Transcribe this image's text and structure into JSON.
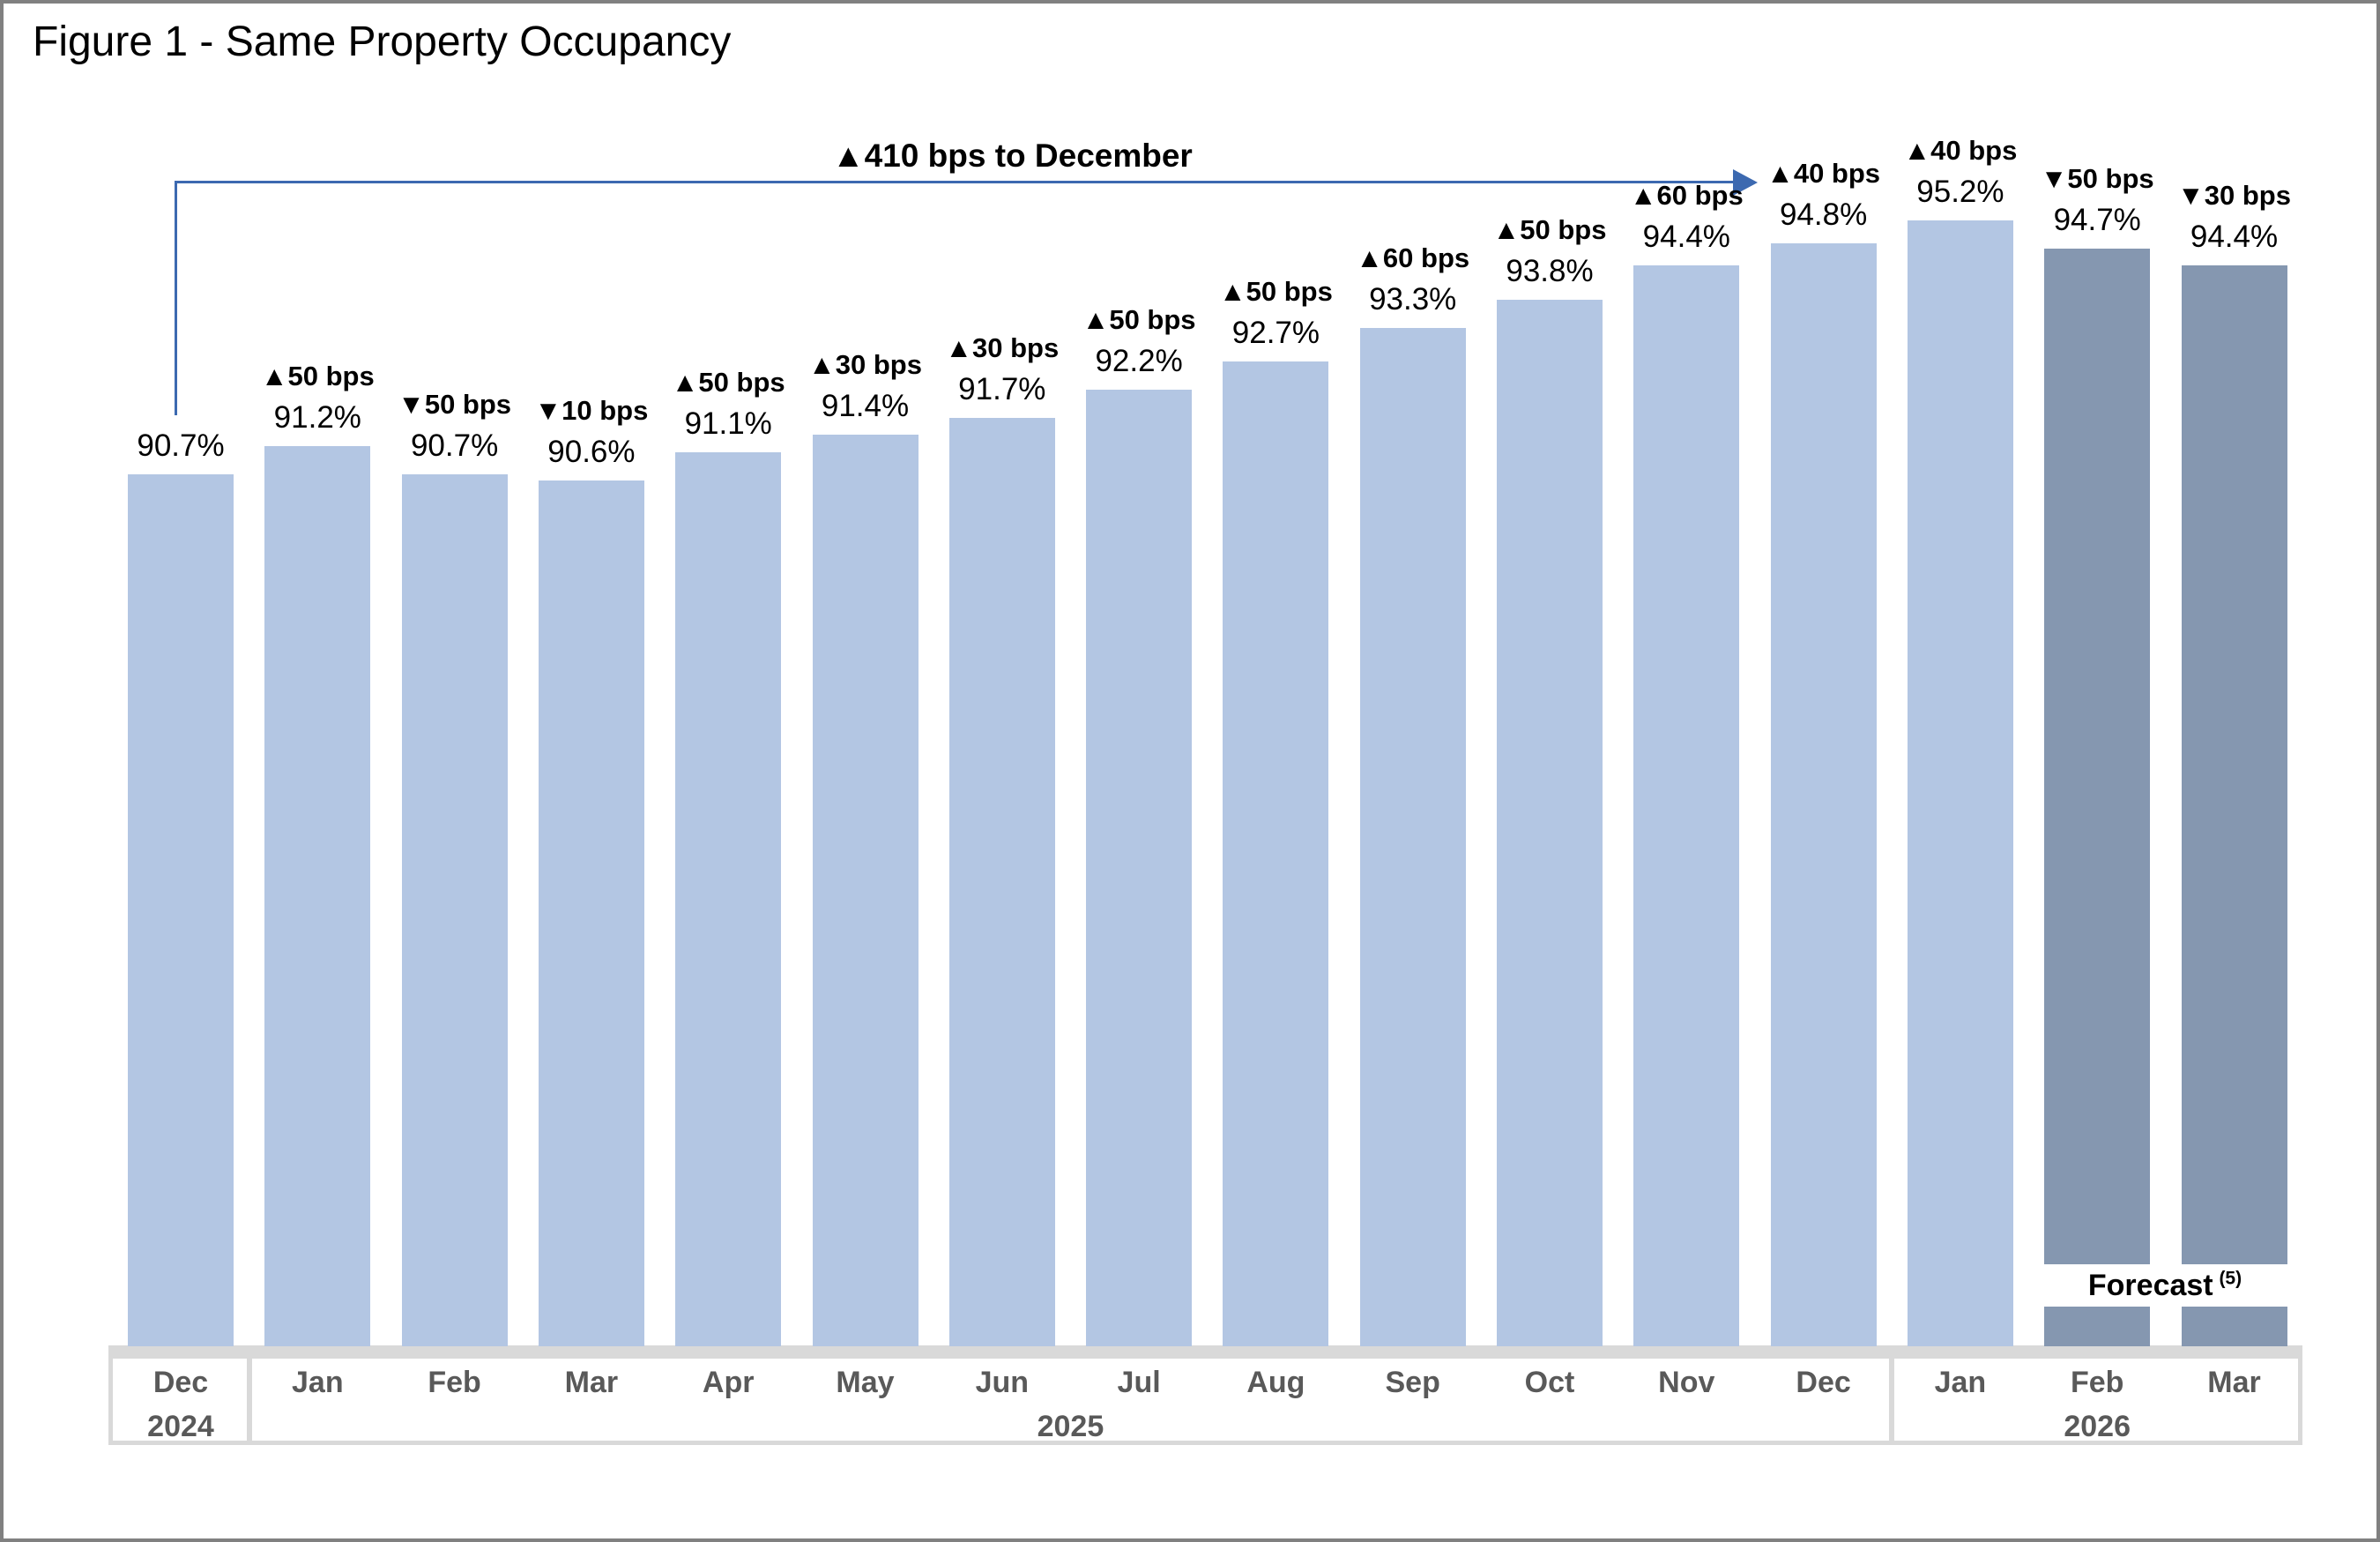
{
  "title": "Figure 1 - Same Property Occupancy",
  "annotation": {
    "text": "▲410 bps to December"
  },
  "forecast_label": {
    "text": "Forecast",
    "note": "(5)"
  },
  "colors": {
    "bar": "#B3C6E3",
    "forecast_bar": "#8597B0",
    "arrow_blue": "#3C69B0",
    "axis_gray": "#D9D9D9",
    "axis_text_gray": "#595959"
  },
  "chart_data": {
    "type": "bar",
    "title": "Figure 1 - Same Property Occupancy",
    "xlabel": "",
    "ylabel": "",
    "y_axis_hidden": true,
    "ylim": [
      75.25,
      96.6
    ],
    "grid": false,
    "legend": false,
    "categories": [
      "Dec",
      "Jan",
      "Feb",
      "Mar",
      "Apr",
      "May",
      "Jun",
      "Jul",
      "Aug",
      "Sep",
      "Oct",
      "Nov",
      "Dec",
      "Jan",
      "Feb",
      "Mar"
    ],
    "points": [
      {
        "month": "Dec",
        "year": "2024",
        "value": 90.7,
        "value_label": "90.7%",
        "change_label": "",
        "forecast": false
      },
      {
        "month": "Jan",
        "year": "2025",
        "value": 91.2,
        "value_label": "91.2%",
        "change_label": "▲50 bps",
        "forecast": false
      },
      {
        "month": "Feb",
        "year": "2025",
        "value": 90.7,
        "value_label": "90.7%",
        "change_label": "▼50 bps",
        "forecast": false
      },
      {
        "month": "Mar",
        "year": "2025",
        "value": 90.6,
        "value_label": "90.6%",
        "change_label": "▼10 bps",
        "forecast": false
      },
      {
        "month": "Apr",
        "year": "2025",
        "value": 91.1,
        "value_label": "91.1%",
        "change_label": "▲50 bps",
        "forecast": false
      },
      {
        "month": "May",
        "year": "2025",
        "value": 91.4,
        "value_label": "91.4%",
        "change_label": "▲30 bps",
        "forecast": false
      },
      {
        "month": "Jun",
        "year": "2025",
        "value": 91.7,
        "value_label": "91.7%",
        "change_label": "▲30 bps",
        "forecast": false
      },
      {
        "month": "Jul",
        "year": "2025",
        "value": 92.2,
        "value_label": "92.2%",
        "change_label": "▲50 bps",
        "forecast": false
      },
      {
        "month": "Aug",
        "year": "2025",
        "value": 92.7,
        "value_label": "92.7%",
        "change_label": "▲50 bps",
        "forecast": false
      },
      {
        "month": "Sep",
        "year": "2025",
        "value": 93.3,
        "value_label": "93.3%",
        "change_label": "▲60 bps",
        "forecast": false
      },
      {
        "month": "Oct",
        "year": "2025",
        "value": 93.8,
        "value_label": "93.8%",
        "change_label": "▲50 bps",
        "forecast": false
      },
      {
        "month": "Nov",
        "year": "2025",
        "value": 94.4,
        "value_label": "94.4%",
        "change_label": "▲60 bps",
        "forecast": false
      },
      {
        "month": "Dec",
        "year": "2025",
        "value": 94.8,
        "value_label": "94.8%",
        "change_label": "▲40 bps",
        "forecast": false
      },
      {
        "month": "Jan",
        "year": "2026",
        "value": 95.2,
        "value_label": "95.2%",
        "change_label": "▲40 bps",
        "forecast": false
      },
      {
        "month": "Feb",
        "year": "2026",
        "value": 94.7,
        "value_label": "94.7%",
        "change_label": "▼50 bps",
        "forecast": true
      },
      {
        "month": "Mar",
        "year": "2026",
        "value": 94.4,
        "value_label": "94.4%",
        "change_label": "▼30 bps",
        "forecast": true
      }
    ],
    "year_groups": [
      {
        "year": "2024",
        "from": 0,
        "to": 0
      },
      {
        "year": "2025",
        "from": 1,
        "to": 12
      },
      {
        "year": "2026",
        "from": 13,
        "to": 15
      }
    ]
  }
}
